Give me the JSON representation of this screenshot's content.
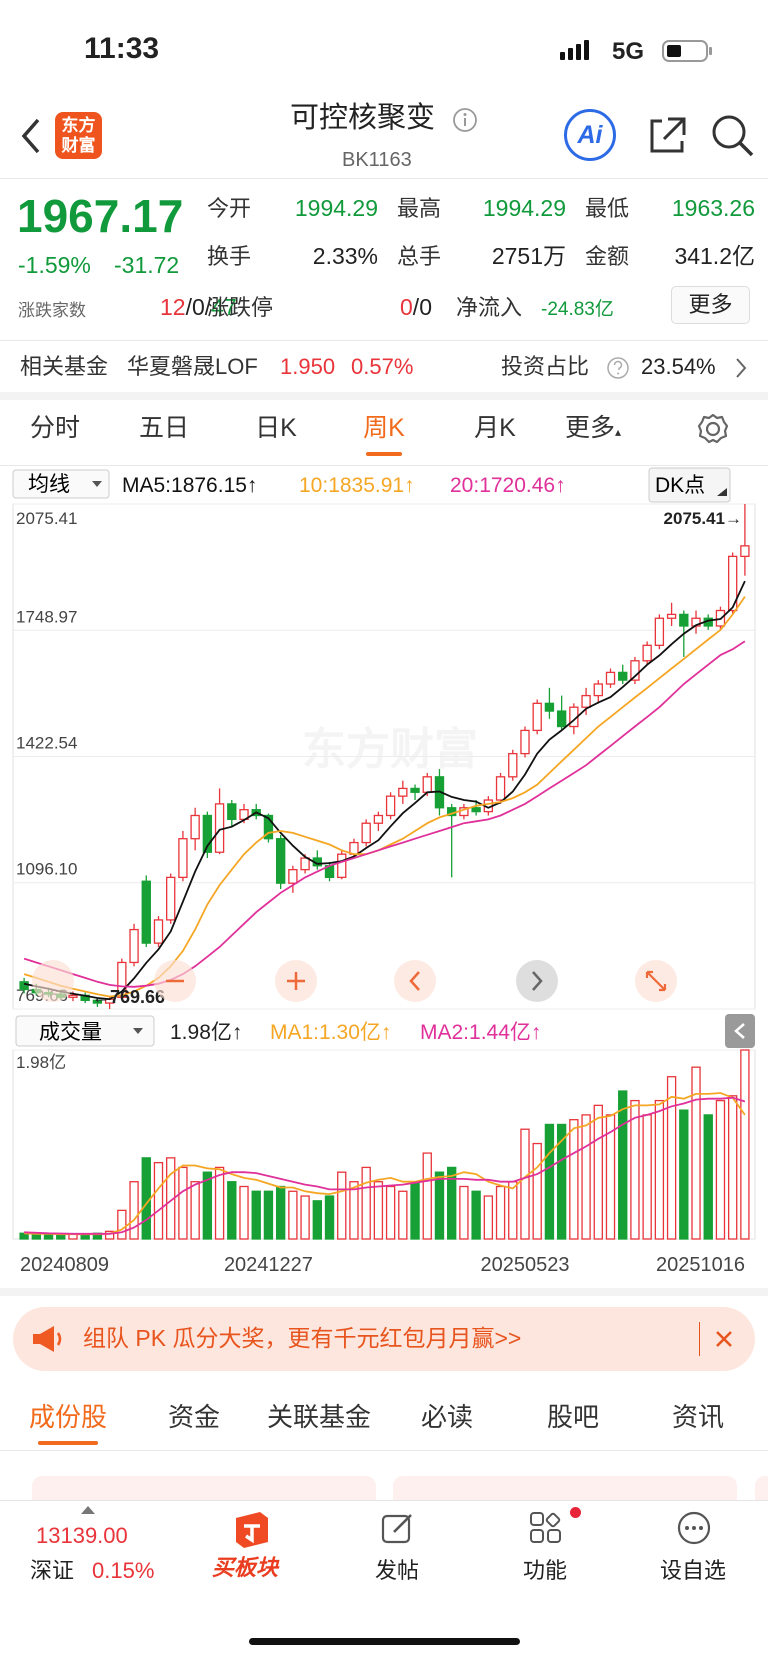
{
  "status": {
    "time": "11:33",
    "network": "5G"
  },
  "header": {
    "logo": [
      "东方",
      "财富"
    ],
    "title": "可控核聚变",
    "code": "BK1163",
    "ai": "Ai"
  },
  "quote": {
    "price": "1967.17",
    "change_pct": "-1.59%",
    "change": "-31.72",
    "stats": [
      {
        "label": "今开",
        "value": "1994.29"
      },
      {
        "label": "最高",
        "value": "1994.29"
      },
      {
        "label": "最低",
        "value": "1963.26"
      },
      {
        "label": "换手",
        "value": "2.33%"
      },
      {
        "label": "总手",
        "value": "2751万"
      },
      {
        "label": "金额",
        "value": "341.2亿"
      }
    ],
    "breadth_label": "涨跌家数",
    "up": "12",
    "flat": "0",
    "down": "47",
    "limit_label": "涨跌停",
    "limit_up": "0",
    "limit_down": "0",
    "inflow_label": "净流入",
    "inflow": "-24.83亿",
    "more": "更多"
  },
  "fund": {
    "label": "相关基金",
    "name": "华夏磐晟LOF",
    "price": "1.950",
    "pct": "0.57%",
    "ratio_label": "投资占比",
    "ratio": "23.54%"
  },
  "period_tabs": [
    "分时",
    "五日",
    "日K",
    "周K",
    "月K",
    "更多"
  ],
  "chart_data": {
    "type": "candlestick",
    "indicator": "均线",
    "dk": "DK点",
    "watermark": "东方财富",
    "up_color": "#e8343a",
    "down_color": "#16a035",
    "categories": [
      "20240809",
      null,
      null,
      null,
      null,
      null,
      null,
      null,
      null,
      null,
      null,
      null,
      null,
      null,
      null,
      null,
      null,
      null,
      null,
      null,
      "20241227",
      null,
      null,
      null,
      null,
      null,
      null,
      null,
      null,
      null,
      null,
      null,
      null,
      null,
      null,
      null,
      null,
      null,
      null,
      null,
      null,
      "20250523",
      null,
      null,
      null,
      null,
      null,
      null,
      null,
      null,
      null,
      null,
      null,
      null,
      null,
      null,
      null,
      "20251016",
      null,
      null
    ],
    "ohlc": [
      [
        840,
        850,
        810,
        820
      ],
      [
        820,
        835,
        805,
        812
      ],
      [
        812,
        825,
        800,
        808
      ],
      [
        808,
        820,
        795,
        800
      ],
      [
        800,
        815,
        790,
        805
      ],
      [
        805,
        812,
        785,
        792
      ],
      [
        792,
        800,
        775,
        785
      ],
      [
        785,
        800,
        769.66,
        795
      ],
      [
        800,
        900,
        798,
        890
      ],
      [
        890,
        990,
        880,
        975
      ],
      [
        1100,
        1115,
        930,
        940
      ],
      [
        940,
        1010,
        930,
        1000
      ],
      [
        1000,
        1120,
        990,
        1110
      ],
      [
        1110,
        1230,
        1100,
        1210
      ],
      [
        1210,
        1290,
        1180,
        1270
      ],
      [
        1270,
        1280,
        1160,
        1175
      ],
      [
        1175,
        1340,
        1170,
        1300
      ],
      [
        1300,
        1310,
        1240,
        1260
      ],
      [
        1260,
        1300,
        1250,
        1285
      ],
      [
        1285,
        1300,
        1260,
        1270
      ],
      [
        1270,
        1275,
        1200,
        1210
      ],
      [
        1210,
        1220,
        1080,
        1095
      ],
      [
        1095,
        1140,
        1070,
        1130
      ],
      [
        1130,
        1170,
        1120,
        1160
      ],
      [
        1160,
        1180,
        1130,
        1140
      ],
      [
        1140,
        1150,
        1100,
        1110
      ],
      [
        1110,
        1180,
        1105,
        1170
      ],
      [
        1170,
        1210,
        1160,
        1200
      ],
      [
        1200,
        1260,
        1190,
        1250
      ],
      [
        1250,
        1280,
        1230,
        1270
      ],
      [
        1270,
        1330,
        1260,
        1320
      ],
      [
        1320,
        1360,
        1300,
        1340
      ],
      [
        1340,
        1350,
        1310,
        1330
      ],
      [
        1330,
        1380,
        1320,
        1370
      ],
      [
        1370,
        1390,
        1270,
        1290
      ],
      [
        1290,
        1300,
        1110,
        1270
      ],
      [
        1270,
        1300,
        1260,
        1290
      ],
      [
        1290,
        1310,
        1270,
        1280
      ],
      [
        1280,
        1320,
        1270,
        1310
      ],
      [
        1310,
        1380,
        1300,
        1370
      ],
      [
        1370,
        1440,
        1360,
        1430
      ],
      [
        1430,
        1500,
        1420,
        1490
      ],
      [
        1490,
        1570,
        1480,
        1560
      ],
      [
        1560,
        1600,
        1520,
        1540
      ],
      [
        1540,
        1580,
        1490,
        1500
      ],
      [
        1500,
        1560,
        1480,
        1550
      ],
      [
        1550,
        1600,
        1530,
        1580
      ],
      [
        1580,
        1620,
        1560,
        1610
      ],
      [
        1610,
        1650,
        1600,
        1640
      ],
      [
        1640,
        1660,
        1610,
        1620
      ],
      [
        1620,
        1680,
        1610,
        1670
      ],
      [
        1670,
        1720,
        1660,
        1710
      ],
      [
        1710,
        1790,
        1700,
        1780
      ],
      [
        1780,
        1820,
        1760,
        1790
      ],
      [
        1790,
        1800,
        1680,
        1760
      ],
      [
        1760,
        1800,
        1740,
        1780
      ],
      [
        1780,
        1790,
        1750,
        1760
      ],
      [
        1760,
        1810,
        1750,
        1800
      ],
      [
        1800,
        1950,
        1790,
        1940
      ],
      [
        1940,
        2075.41,
        1890,
        1967.17
      ]
    ],
    "series": [
      {
        "name": "MA5:1876.15↑",
        "color": "#111111",
        "values": [
          835,
          828,
          822,
          815,
          809,
          804,
          798,
          795,
          815,
          849,
          889,
          924,
          970,
          1047,
          1125,
          1191,
          1233,
          1241,
          1258,
          1278,
          1263,
          1225,
          1192,
          1163,
          1145,
          1147,
          1152,
          1164,
          1186,
          1206,
          1242,
          1276,
          1302,
          1330,
          1332,
          1318,
          1310,
          1306,
          1290,
          1304,
          1332,
          1376,
          1430,
          1466,
          1490,
          1517,
          1546,
          1562,
          1576,
          1602,
          1630,
          1660,
          1684,
          1713,
          1740,
          1762,
          1774,
          1778,
          1808,
          1876.15
        ]
      },
      {
        "name": "10:1835.91↑",
        "color": "#f5a623",
        "values": [
          860,
          850,
          840,
          830,
          822,
          815,
          808,
          802,
          805,
          815,
          830,
          850,
          880,
          920,
          975,
          1040,
          1090,
          1130,
          1170,
          1200,
          1225,
          1230,
          1225,
          1215,
          1205,
          1195,
          1180,
          1170,
          1170,
          1180,
          1195,
          1210,
          1230,
          1250,
          1265,
          1275,
          1285,
          1295,
          1300,
          1305,
          1315,
          1330,
          1350,
          1380,
          1410,
          1440,
          1470,
          1500,
          1525,
          1550,
          1575,
          1600,
          1625,
          1650,
          1675,
          1700,
          1725,
          1750,
          1790,
          1835.91
        ]
      },
      {
        "name": "20:1720.46↑",
        "color": "#e0309a",
        "values": [
          900,
          890,
          880,
          870,
          860,
          850,
          840,
          832,
          828,
          827,
          830,
          835,
          845,
          860,
          880,
          905,
          930,
          960,
          990,
          1020,
          1045,
          1070,
          1090,
          1110,
          1125,
          1140,
          1150,
          1160,
          1170,
          1180,
          1190,
          1200,
          1210,
          1220,
          1230,
          1240,
          1250,
          1255,
          1260,
          1270,
          1285,
          1300,
          1320,
          1340,
          1360,
          1380,
          1400,
          1425,
          1450,
          1475,
          1500,
          1525,
          1550,
          1580,
          1610,
          1635,
          1660,
          1685,
          1700,
          1720.46
        ]
      }
    ],
    "ylim": [
      769.66,
      2075.41
    ],
    "yticks": [
      2075.41,
      1748.97,
      1422.54,
      {
        "value": 1096.1,
        "label": "1096.10"
      },
      769.66
    ],
    "max_label": "2075.41→",
    "min_label": "←769.66",
    "volume": {
      "label": "成交量",
      "current": "1.98亿↑",
      "ylim": [
        0,
        1.98
      ],
      "yticks": [
        {
          "value": 1.98,
          "label": "1.98亿"
        }
      ],
      "values": [
        0.06,
        0.05,
        0.05,
        0.04,
        0.05,
        0.05,
        0.06,
        0.08,
        0.3,
        0.6,
        0.85,
        0.8,
        0.85,
        0.75,
        0.6,
        0.7,
        0.75,
        0.6,
        0.55,
        0.5,
        0.5,
        0.55,
        0.5,
        0.45,
        0.4,
        0.45,
        0.7,
        0.6,
        0.75,
        0.6,
        0.55,
        0.5,
        0.6,
        0.9,
        0.7,
        0.75,
        0.55,
        0.5,
        0.45,
        0.55,
        0.6,
        1.15,
        1.0,
        1.2,
        1.2,
        1.25,
        1.3,
        1.4,
        1.3,
        1.55,
        1.45,
        1.3,
        1.45,
        1.7,
        1.35,
        1.8,
        1.3,
        1.45,
        1.5,
        1.98
      ],
      "series": [
        {
          "name": "MA1:1.30亿↑",
          "color": "#f5a623",
          "values": [
            0.06,
            0.055,
            0.053,
            0.05,
            0.05,
            0.05,
            0.05,
            0.056,
            0.1,
            0.2,
            0.37,
            0.53,
            0.68,
            0.77,
            0.77,
            0.74,
            0.73,
            0.68,
            0.64,
            0.62,
            0.58,
            0.54,
            0.54,
            0.5,
            0.48,
            0.47,
            0.5,
            0.54,
            0.59,
            0.62,
            0.64,
            0.6,
            0.6,
            0.63,
            0.65,
            0.66,
            0.7,
            0.68,
            0.6,
            0.56,
            0.53,
            0.65,
            0.75,
            0.9,
            1.03,
            1.16,
            1.19,
            1.27,
            1.29,
            1.36,
            1.4,
            1.4,
            1.41,
            1.49,
            1.47,
            1.52,
            1.52,
            1.53,
            1.48,
            1.3
          ]
        },
        {
          "name": "MA2:1.44亿↑",
          "color": "#e0309a",
          "values": [
            0.07,
            0.065,
            0.06,
            0.058,
            0.055,
            0.055,
            0.054,
            0.055,
            0.07,
            0.12,
            0.2,
            0.3,
            0.4,
            0.5,
            0.57,
            0.62,
            0.67,
            0.7,
            0.7,
            0.69,
            0.66,
            0.63,
            0.6,
            0.57,
            0.55,
            0.52,
            0.52,
            0.52,
            0.54,
            0.55,
            0.56,
            0.57,
            0.59,
            0.61,
            0.63,
            0.63,
            0.63,
            0.62,
            0.62,
            0.6,
            0.6,
            0.64,
            0.68,
            0.75,
            0.83,
            0.9,
            0.97,
            1.05,
            1.12,
            1.2,
            1.27,
            1.3,
            1.34,
            1.39,
            1.42,
            1.46,
            1.47,
            1.47,
            1.48,
            1.44
          ]
        }
      ]
    }
  },
  "banner": "组队 PK 瓜分大奖，更有千元红包月月赢>>",
  "content_tabs": [
    "成份股",
    "资金",
    "关联基金",
    "必读",
    "股吧",
    "资讯"
  ],
  "bottom": {
    "index_value": "13139.00",
    "index_name": "深证",
    "index_pct": "0.15%",
    "items": [
      "买板块",
      "发帖",
      "功能",
      "设自选"
    ]
  }
}
